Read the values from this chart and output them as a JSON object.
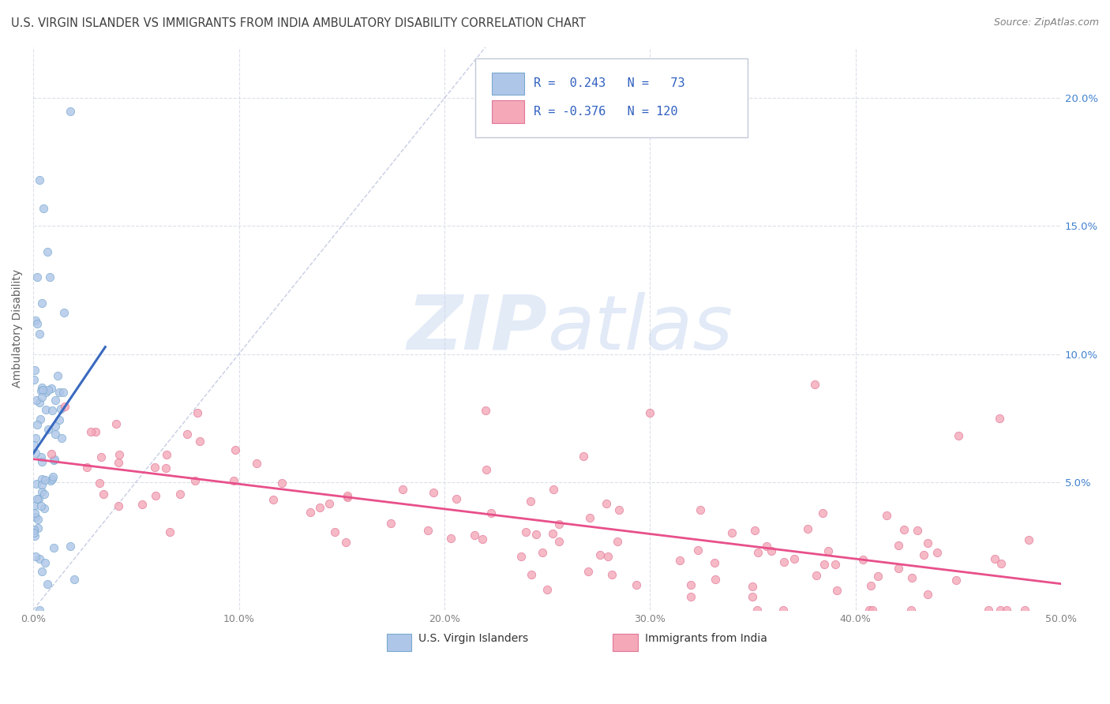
{
  "title": "U.S. VIRGIN ISLANDER VS IMMIGRANTS FROM INDIA AMBULATORY DISABILITY CORRELATION CHART",
  "source": "Source: ZipAtlas.com",
  "ylabel": "Ambulatory Disability",
  "xlim": [
    0.0,
    0.5
  ],
  "ylim": [
    0.0,
    0.22
  ],
  "xticks": [
    0.0,
    0.1,
    0.2,
    0.3,
    0.4,
    0.5
  ],
  "xticklabels": [
    "0.0%",
    "10.0%",
    "20.0%",
    "30.0%",
    "40.0%",
    "50.0%"
  ],
  "yticks": [
    0.0,
    0.05,
    0.1,
    0.15,
    0.2
  ],
  "yticklabels_right": [
    "",
    "5.0%",
    "10.0%",
    "15.0%",
    "20.0%"
  ],
  "blue_R": 0.243,
  "blue_N": 73,
  "pink_R": -0.376,
  "pink_N": 120,
  "blue_color": "#aec6e8",
  "pink_color": "#f4a8b8",
  "blue_edge_color": "#7aaace",
  "pink_edge_color": "#e07898",
  "blue_line_color": "#3a6abf",
  "pink_line_color": "#e8508a",
  "diag_color": "#b0b8d8",
  "grid_color": "#d8dce8",
  "right_tick_color": "#4080d0",
  "legend_face_color": "#ffffff",
  "legend_edge_color": "#c0c8d8",
  "watermark_zip_color": "#c8d8f0",
  "watermark_atlas_color": "#b0c8e8",
  "title_color": "#404040",
  "source_color": "#808080",
  "ylabel_color": "#606060",
  "tick_color": "#808080"
}
